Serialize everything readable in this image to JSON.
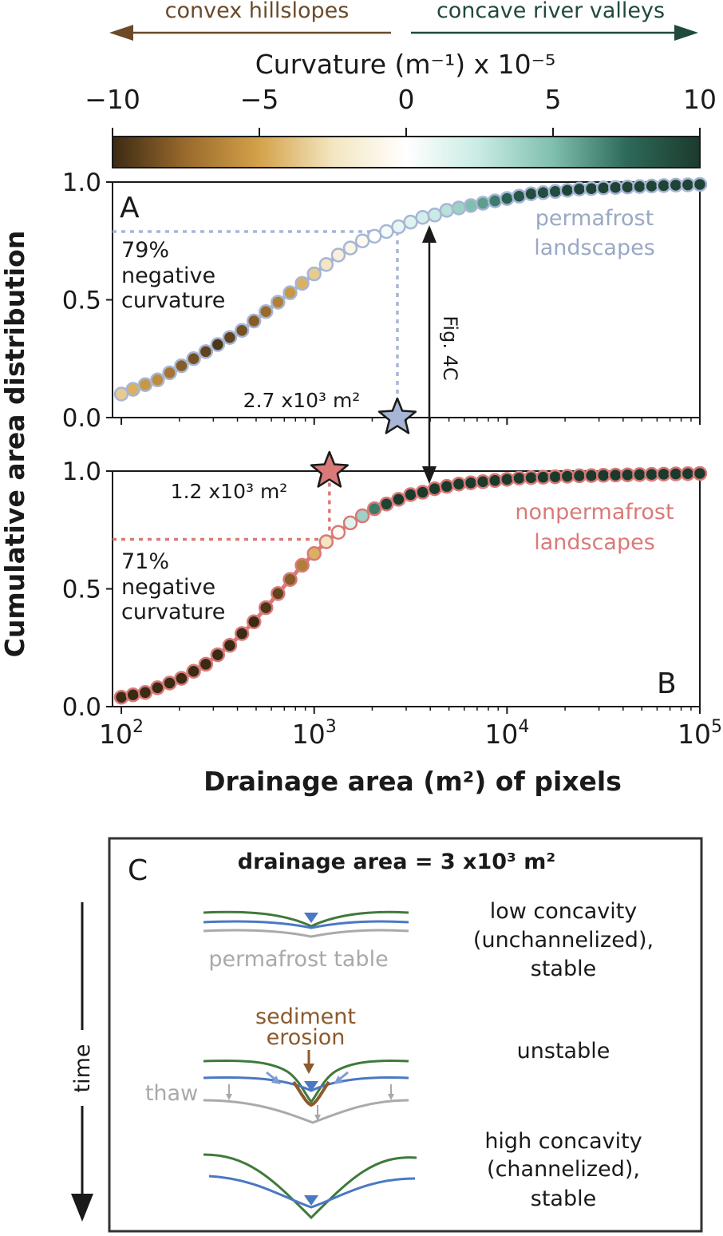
{
  "colors": {
    "convex": "#6b4a2a",
    "concave": "#1f4a3e",
    "permafrost": "#a7b6d6",
    "permafrost_text": "#9aa8c4",
    "nonpermafrost": "#d97a78",
    "nonpermafrost_text": "#d97a78",
    "sediment": "#8c5a2c",
    "water": "#4a78c4",
    "ground": "#3f7a3a",
    "table": "#aaaaaa",
    "cmap": [
      "#3b2a14",
      "#9a6a2c",
      "#d4a24a",
      "#f3e6c0",
      "#ffffff",
      "#c8ebe3",
      "#7fbfae",
      "#2d6a5a",
      "#1c3a2c"
    ]
  },
  "colorbar": {
    "arrow_left_label": "convex hillslopes",
    "arrow_right_label": "concave river valleys",
    "title": "Curvature (m⁻¹) x 10⁻⁵",
    "ticks": [
      -10,
      -5,
      0,
      5,
      10
    ],
    "tick_labels": [
      "−10",
      "−5",
      "0",
      "5",
      "10"
    ]
  },
  "chart_data": [
    {
      "panel": "A",
      "type": "scatter",
      "title": "",
      "xscale": "log",
      "xlim": [
        90,
        100000
      ],
      "ylim": [
        0.0,
        1.0
      ],
      "yticks": [
        0.0,
        0.5,
        1.0
      ],
      "ytick_labels": [
        "0.0",
        "0.5",
        "1.0"
      ],
      "series_name": "permafrost landscapes",
      "series_label_lines": [
        "permafrost",
        "landscapes"
      ],
      "x": [
        100,
        115,
        133,
        154,
        178,
        205,
        237,
        274,
        316,
        365,
        422,
        487,
        562,
        649,
        750,
        866,
        1000,
        1155,
        1334,
        1540,
        1778,
        2054,
        2371,
        2738,
        3162,
        3652,
        4217,
        4870,
        5623,
        6494,
        7499,
        8660,
        10000,
        11548,
        13335,
        15399,
        17783,
        20535,
        23714,
        27384,
        31623,
        36517,
        42170,
        48697,
        56234,
        64938,
        74989,
        86596,
        100000
      ],
      "y": [
        0.1,
        0.12,
        0.14,
        0.16,
        0.19,
        0.22,
        0.25,
        0.28,
        0.31,
        0.34,
        0.37,
        0.41,
        0.45,
        0.49,
        0.53,
        0.57,
        0.61,
        0.65,
        0.69,
        0.72,
        0.75,
        0.77,
        0.79,
        0.81,
        0.83,
        0.85,
        0.86,
        0.88,
        0.89,
        0.9,
        0.91,
        0.92,
        0.93,
        0.94,
        0.95,
        0.955,
        0.96,
        0.965,
        0.97,
        0.972,
        0.975,
        0.977,
        0.979,
        0.981,
        0.983,
        0.985,
        0.987,
        0.988,
        0.99
      ],
      "curvature": [
        -3.5,
        -4.5,
        -5.5,
        -6,
        -7,
        -8,
        -8.5,
        -9,
        -9.5,
        -9,
        -8.5,
        -8,
        -7.5,
        -6.5,
        -5.5,
        -4.5,
        -3.5,
        -2.5,
        -1.5,
        -1,
        -0.5,
        0,
        0.5,
        1,
        1.5,
        2,
        2.5,
        3,
        4,
        5,
        6,
        7,
        8,
        8.5,
        9,
        9,
        9,
        9.5,
        9.5,
        9.5,
        9.5,
        9.5,
        9.5,
        9.5,
        9.5,
        9.5,
        9.5,
        9.5,
        9.5
      ],
      "marker": {
        "x": 2700,
        "y": 0.0,
        "label": "2.7 x10³ m²"
      },
      "reference_level": 0.79,
      "annotation_lines": [
        "79%",
        "negative",
        "curvature"
      ]
    },
    {
      "panel": "B",
      "type": "scatter",
      "title": "",
      "xscale": "log",
      "xlim": [
        90,
        100000
      ],
      "ylim": [
        0.0,
        1.0
      ],
      "yticks": [
        0.0,
        0.5,
        1.0
      ],
      "ytick_labels": [
        "0.0",
        "0.5",
        "1.0"
      ],
      "xticks": [
        100,
        1000,
        10000,
        100000
      ],
      "xtick_bases": [
        "10",
        "10",
        "10",
        "10"
      ],
      "xtick_exps": [
        "2",
        "3",
        "4",
        "5"
      ],
      "series_name": "nonpermafrost landscapes",
      "series_label_lines": [
        "nonpermafrost",
        "landscapes"
      ],
      "x": [
        100,
        115,
        133,
        154,
        178,
        205,
        237,
        274,
        316,
        365,
        422,
        487,
        562,
        649,
        750,
        866,
        1000,
        1155,
        1334,
        1540,
        1778,
        2054,
        2371,
        2738,
        3162,
        3652,
        4217,
        4870,
        5623,
        6494,
        7499,
        8660,
        10000,
        11548,
        13335,
        15399,
        17783,
        20535,
        23714,
        27384,
        31623,
        36517,
        42170,
        48697,
        56234,
        64938,
        74989,
        86596,
        100000
      ],
      "y": [
        0.04,
        0.05,
        0.06,
        0.08,
        0.1,
        0.12,
        0.15,
        0.18,
        0.22,
        0.26,
        0.31,
        0.36,
        0.42,
        0.48,
        0.54,
        0.6,
        0.65,
        0.7,
        0.74,
        0.78,
        0.81,
        0.84,
        0.86,
        0.88,
        0.9,
        0.91,
        0.925,
        0.935,
        0.945,
        0.95,
        0.955,
        0.96,
        0.965,
        0.97,
        0.972,
        0.974,
        0.976,
        0.978,
        0.98,
        0.981,
        0.982,
        0.983,
        0.984,
        0.985,
        0.986,
        0.987,
        0.988,
        0.989,
        0.99
      ],
      "curvature": [
        -10,
        -10,
        -10,
        -10,
        -10,
        -10,
        -10,
        -10,
        -10,
        -10,
        -10,
        -10,
        -9.5,
        -9,
        -8,
        -6.5,
        -4.5,
        -2.5,
        -0.5,
        1.5,
        4,
        7,
        9.5,
        10,
        10,
        10,
        10,
        10,
        10,
        10,
        10,
        10,
        10,
        10,
        10,
        10,
        10,
        10,
        10,
        10,
        10,
        10,
        10,
        10,
        10,
        10,
        10,
        10,
        10
      ],
      "marker": {
        "x": 1200,
        "y": 1.0,
        "label": "1.2 x10³ m²"
      },
      "reference_level": 0.71,
      "annotation_lines": [
        "71%",
        "negative",
        "curvature"
      ]
    }
  ],
  "axes": {
    "ylabel": "Cumulative area distribution",
    "xlabel": "Drainage area (m²) of pixels",
    "panel_a_letter": "A",
    "panel_b_letter": "B",
    "fig_ref_label": "Fig. 4C"
  },
  "schematic": {
    "letter": "C",
    "title": "drainage area = 3 x10³ m²",
    "time_label": "time",
    "permafrost_table_label": "permafrost table",
    "sediment_lines": [
      "sediment",
      "erosion"
    ],
    "thaw_label": "thaw",
    "row1_lines": [
      "low concavity",
      "(unchannelized),",
      "stable"
    ],
    "row2_lines": [
      "unstable"
    ],
    "row3_lines": [
      "high concavity",
      "(channelized),",
      "stable"
    ]
  }
}
